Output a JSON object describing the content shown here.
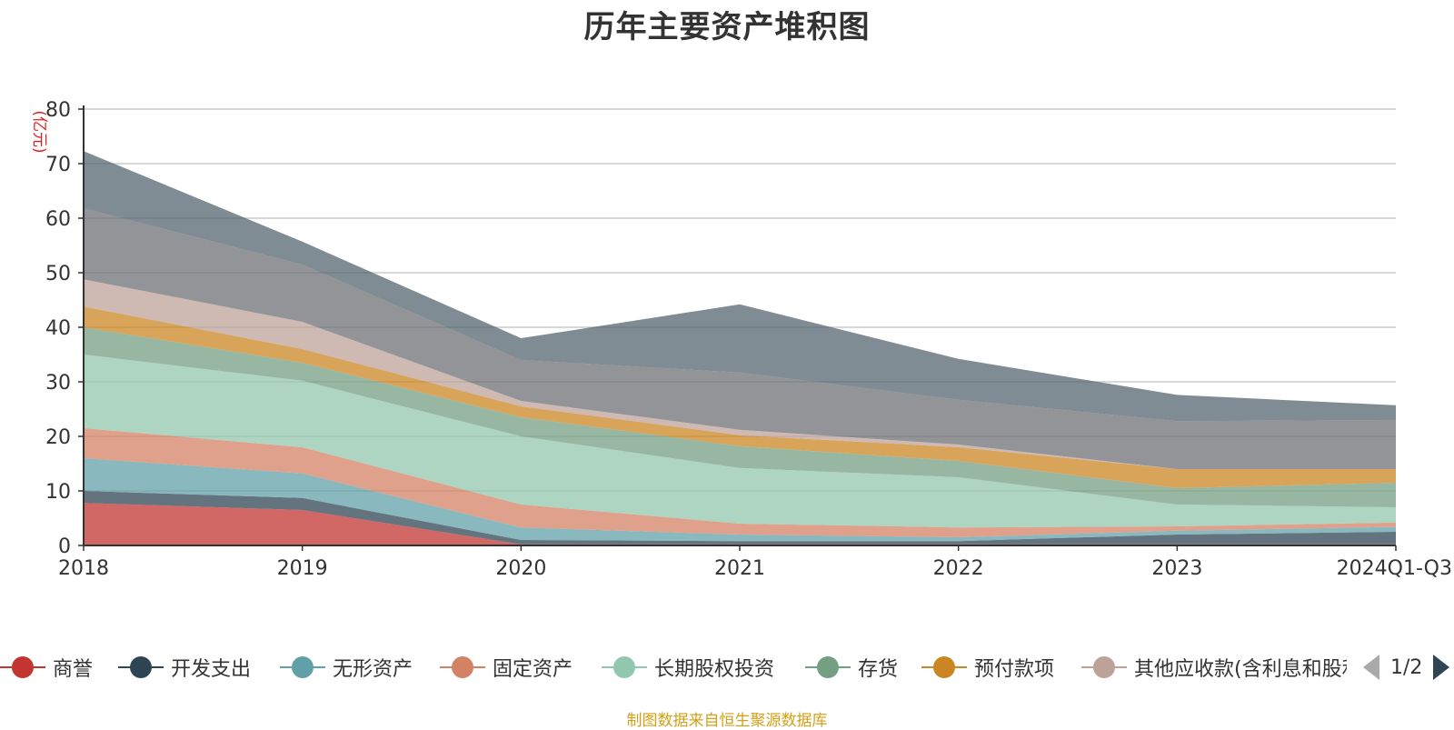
{
  "chart_data": {
    "type": "area",
    "stacked": true,
    "title": "历年主要资产堆积图",
    "ylabel": "(亿元)",
    "xlabel": "",
    "categories": [
      "2018",
      "2019",
      "2020",
      "2021",
      "2022",
      "2023",
      "2024Q1-Q3"
    ],
    "ylim": [
      0,
      80
    ],
    "yticks": [
      0,
      10,
      20,
      30,
      40,
      50,
      60,
      70,
      80
    ],
    "grid": true,
    "legend_position": "bottom",
    "series": [
      {
        "name": "商誉",
        "color": "#c23531",
        "values": [
          7.8,
          6.5,
          0.2,
          0.2,
          0.2,
          0.2,
          0.2
        ]
      },
      {
        "name": "开发支出",
        "color": "#2f4554",
        "values": [
          2.2,
          2.2,
          0.8,
          0.6,
          0.6,
          1.8,
          2.3
        ]
      },
      {
        "name": "无形资产",
        "color": "#61a0a8",
        "values": [
          6.0,
          4.5,
          2.3,
          1.2,
          0.7,
          0.7,
          0.9
        ]
      },
      {
        "name": "固定资产",
        "color": "#d48265",
        "values": [
          5.5,
          4.8,
          4.2,
          2.0,
          1.8,
          0.8,
          0.8
        ]
      },
      {
        "name": "长期股权投资",
        "color": "#91c7ae",
        "values": [
          13.5,
          12.2,
          12.5,
          10.2,
          9.2,
          4.0,
          2.8
        ]
      },
      {
        "name": "存货",
        "color": "#749f83",
        "values": [
          5.0,
          3.3,
          3.5,
          4.0,
          3.0,
          3.0,
          4.5
        ]
      },
      {
        "name": "预付款项",
        "color": "#ca8622",
        "values": [
          3.8,
          2.5,
          2.0,
          2.0,
          2.5,
          3.5,
          2.5
        ]
      },
      {
        "name": "其他应收款(含利息和股利)",
        "color": "#bda29a",
        "values": [
          5.0,
          5.0,
          1.0,
          1.0,
          0.5,
          0.0,
          0.0
        ]
      },
      {
        "name": "",
        "color": "#6e7074",
        "values": [
          13.0,
          10.5,
          7.5,
          10.5,
          8.2,
          8.8,
          9.0
        ]
      },
      {
        "name": "",
        "color": "#546570",
        "values": [
          10.5,
          4.2,
          4.0,
          12.5,
          7.5,
          4.8,
          2.7
        ]
      }
    ]
  },
  "legend": {
    "page": "1/2"
  },
  "footer": {
    "source": "制图数据来自恒生聚源数据库"
  }
}
